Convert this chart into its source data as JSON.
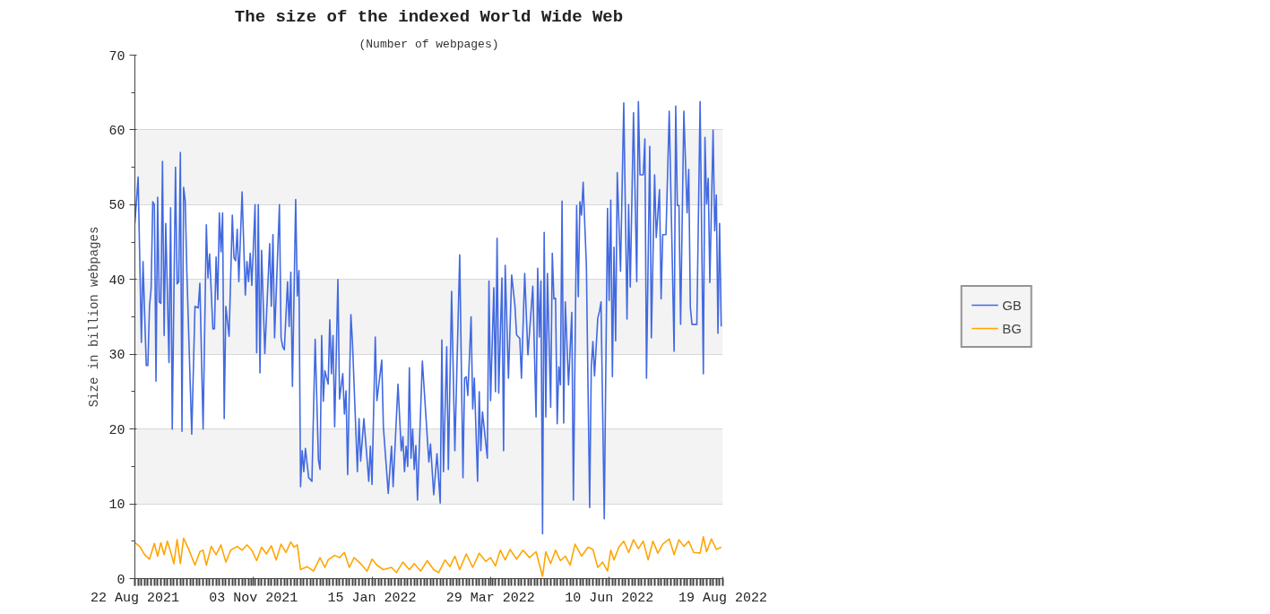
{
  "chart_data": {
    "type": "line",
    "title": "The size of the indexed World Wide Web",
    "subtitle": "(Number of webpages)",
    "ylabel": "Size in billion webpages",
    "xlim": [
      "2021-08-22",
      "2022-08-19"
    ],
    "xticks": [
      {
        "value": "2021-08-22",
        "label": "22 Aug 2021"
      },
      {
        "value": "2021-11-03",
        "label": "03 Nov 2021"
      },
      {
        "value": "2022-01-15",
        "label": "15 Jan 2022"
      },
      {
        "value": "2022-03-29",
        "label": "29 Mar 2022"
      },
      {
        "value": "2022-06-10",
        "label": "10 Jun 2022"
      },
      {
        "value": "2022-08-19",
        "label": "19 Aug 2022"
      }
    ],
    "ylim": [
      0,
      70
    ],
    "yticks": [
      0,
      10,
      20,
      30,
      40,
      50,
      60,
      70
    ],
    "grid": "y",
    "legend": "right",
    "line_style": "solid",
    "marker": "none",
    "series": [
      {
        "name": "GB",
        "color": "#4169e1",
        "x": [
          "2021-08-22",
          "2021-08-24",
          "2021-08-26",
          "2021-08-27",
          "2021-08-29",
          "2021-08-30",
          "2021-08-31",
          "2021-09-01",
          "2021-09-02",
          "2021-09-03",
          "2021-09-04",
          "2021-09-05",
          "2021-09-06",
          "2021-09-07",
          "2021-09-08",
          "2021-09-09",
          "2021-09-10",
          "2021-09-12",
          "2021-09-13",
          "2021-09-14",
          "2021-09-16",
          "2021-09-17",
          "2021-09-18",
          "2021-09-19",
          "2021-09-20",
          "2021-09-21",
          "2021-09-22",
          "2021-09-23",
          "2021-09-26",
          "2021-09-28",
          "2021-09-30",
          "2021-10-01",
          "2021-10-03",
          "2021-10-05",
          "2021-10-06",
          "2021-10-07",
          "2021-10-09",
          "2021-10-10",
          "2021-10-11",
          "2021-10-12",
          "2021-10-13",
          "2021-10-14",
          "2021-10-15",
          "2021-10-16",
          "2021-10-17",
          "2021-10-19",
          "2021-10-21",
          "2021-10-22",
          "2021-10-23",
          "2021-10-24",
          "2021-10-25",
          "2021-10-27",
          "2021-10-29",
          "2021-10-30",
          "2021-10-31",
          "2021-11-01",
          "2021-11-02",
          "2021-11-04",
          "2021-11-05",
          "2021-11-06",
          "2021-11-07",
          "2021-11-08",
          "2021-11-10",
          "2021-11-13",
          "2021-11-14",
          "2021-11-15",
          "2021-11-16",
          "2021-11-19",
          "2021-11-20",
          "2021-11-21",
          "2021-11-22",
          "2021-11-24",
          "2021-11-25",
          "2021-11-26",
          "2021-11-27",
          "2021-11-29",
          "2021-11-30",
          "2021-12-01",
          "2021-12-02",
          "2021-12-03",
          "2021-12-04",
          "2021-12-05",
          "2021-12-07",
          "2021-12-09",
          "2021-12-11",
          "2021-12-13",
          "2021-12-14",
          "2021-12-15",
          "2021-12-16",
          "2021-12-17",
          "2021-12-19",
          "2021-12-20",
          "2021-12-21",
          "2021-12-22",
          "2021-12-23",
          "2021-12-25",
          "2021-12-26",
          "2021-12-28",
          "2021-12-29",
          "2021-12-30",
          "2021-12-31",
          "2022-01-02",
          "2022-01-03",
          "2022-01-06",
          "2022-01-07",
          "2022-01-08",
          "2022-01-10",
          "2022-01-13",
          "2022-01-14",
          "2022-01-15",
          "2022-01-17",
          "2022-01-18",
          "2022-01-21",
          "2022-01-22",
          "2022-01-25",
          "2022-01-27",
          "2022-01-28",
          "2022-01-31",
          "2022-02-02",
          "2022-02-03",
          "2022-02-04",
          "2022-02-05",
          "2022-02-06",
          "2022-02-07",
          "2022-02-08",
          "2022-02-09",
          "2022-02-10",
          "2022-02-11",
          "2022-02-12",
          "2022-02-15",
          "2022-02-19",
          "2022-02-20",
          "2022-02-22",
          "2022-02-24",
          "2022-02-26",
          "2022-02-27",
          "2022-02-28",
          "2022-03-02",
          "2022-03-03",
          "2022-03-05",
          "2022-03-07",
          "2022-03-10",
          "2022-03-12",
          "2022-03-13",
          "2022-03-14",
          "2022-03-15",
          "2022-03-17",
          "2022-03-18",
          "2022-03-19",
          "2022-03-21",
          "2022-03-22",
          "2022-03-23",
          "2022-03-24",
          "2022-03-27",
          "2022-03-28",
          "2022-03-29",
          "2022-03-31",
          "2022-04-01",
          "2022-04-02",
          "2022-04-03",
          "2022-04-05",
          "2022-04-06",
          "2022-04-07",
          "2022-04-09",
          "2022-04-11",
          "2022-04-13",
          "2022-04-14",
          "2022-04-16",
          "2022-04-17",
          "2022-04-19",
          "2022-04-21",
          "2022-04-24",
          "2022-04-26",
          "2022-04-27",
          "2022-04-28",
          "2022-04-29",
          "2022-04-30",
          "2022-05-01",
          "2022-05-02",
          "2022-05-03",
          "2022-05-05",
          "2022-05-06",
          "2022-05-07",
          "2022-05-08",
          "2022-05-09",
          "2022-05-10",
          "2022-05-11",
          "2022-05-12",
          "2022-05-13",
          "2022-05-14",
          "2022-05-16",
          "2022-05-18",
          "2022-05-19",
          "2022-05-21",
          "2022-05-22",
          "2022-05-23",
          "2022-05-24",
          "2022-05-25",
          "2022-05-27",
          "2022-05-29",
          "2022-05-30",
          "2022-05-31",
          "2022-06-01",
          "2022-06-03",
          "2022-06-04",
          "2022-06-05",
          "2022-06-07",
          "2022-06-09",
          "2022-06-10",
          "2022-06-11",
          "2022-06-12",
          "2022-06-13",
          "2022-06-14",
          "2022-06-15",
          "2022-06-17",
          "2022-06-19",
          "2022-06-21",
          "2022-06-22",
          "2022-06-23",
          "2022-06-25",
          "2022-06-27",
          "2022-06-28",
          "2022-06-29",
          "2022-07-01",
          "2022-07-02",
          "2022-07-03",
          "2022-07-05",
          "2022-07-06",
          "2022-07-08",
          "2022-07-09",
          "2022-07-11",
          "2022-07-12",
          "2022-07-13",
          "2022-07-15",
          "2022-07-17",
          "2022-07-20",
          "2022-07-21",
          "2022-07-22",
          "2022-07-23",
          "2022-07-24",
          "2022-07-26",
          "2022-07-28",
          "2022-07-29",
          "2022-07-30",
          "2022-07-31",
          "2022-08-03",
          "2022-08-05",
          "2022-08-07",
          "2022-08-08",
          "2022-08-09",
          "2022-08-10",
          "2022-08-11",
          "2022-08-13",
          "2022-08-14",
          "2022-08-15",
          "2022-08-16",
          "2022-08-17",
          "2022-08-18"
        ],
        "values": [
          47.5,
          53.7,
          31.6,
          42.4,
          28.5,
          28.5,
          36.4,
          38.8,
          50.4,
          50,
          26.4,
          51,
          37,
          36.8,
          55.8,
          32.5,
          47.5,
          28.9,
          49.6,
          20,
          55,
          39.4,
          39.7,
          57,
          19.7,
          52.3,
          50.5,
          41,
          19.3,
          36.4,
          36.2,
          39.5,
          20,
          47.3,
          40.2,
          43.4,
          33.4,
          33.4,
          43,
          37.3,
          48.9,
          43.7,
          48.9,
          21.4,
          36.4,
          32.4,
          48.6,
          42.9,
          42.5,
          46.7,
          39.7,
          51.7,
          37.9,
          42.4,
          39.7,
          43.5,
          39.2,
          50,
          30.2,
          50,
          27.5,
          43.9,
          30.1,
          44.8,
          36.4,
          46,
          32.2,
          50,
          32.2,
          31,
          30.6,
          39.7,
          33.7,
          41,
          25.7,
          50.7,
          37.8,
          41.2,
          12.3,
          17.1,
          14.3,
          17.4,
          13.5,
          13,
          32,
          15.9,
          14.6,
          32.5,
          23.7,
          27.8,
          26,
          34.6,
          27.4,
          32.5,
          20.3,
          40,
          24,
          27.4,
          22,
          25.1,
          13.9,
          35.3,
          31.4,
          14.3,
          21.4,
          15.7,
          21.4,
          13,
          17.7,
          12.6,
          32.3,
          23.8,
          29.2,
          20.3,
          11.4,
          17.7,
          12.3,
          26,
          17.1,
          19,
          14.3,
          17.7,
          15,
          28.2,
          16.1,
          20,
          14.6,
          17.8,
          10.5,
          29.1,
          15.6,
          18,
          11.2,
          16.7,
          10.1,
          31.9,
          14.3,
          31,
          14.6,
          38.4,
          17.1,
          43.3,
          13.5,
          26.8,
          27,
          24.5,
          35,
          22.7,
          26.8,
          13,
          25,
          17.1,
          22.3,
          16.1,
          39.8,
          23.8,
          38.9,
          25,
          45.5,
          24.8,
          40.2,
          17.1,
          41.9,
          26.8,
          40.6,
          36.5,
          32.6,
          32.1,
          26.8,
          40.8,
          29.9,
          39.1,
          21.6,
          41.5,
          32.3,
          39.8,
          6,
          46.3,
          21.6,
          40.8,
          22.9,
          43.5,
          37.4,
          37.5,
          20.7,
          28.3,
          25.9,
          50.5,
          20.8,
          37,
          25.9,
          35.6,
          10.5,
          49.9,
          37.7,
          50.4,
          48.6,
          53,
          41.8,
          9.5,
          28.3,
          31.7,
          27.1,
          34.8,
          35.7,
          37,
          8,
          49.5,
          37.2,
          50.6,
          27,
          44.3,
          31.8,
          54.3,
          41.1,
          63.6,
          34.7,
          50,
          39,
          62.3,
          39.7,
          63.8,
          54,
          54,
          58.8,
          26.8,
          57.8,
          32.2,
          54,
          45.6,
          52,
          37.4,
          46,
          46,
          62.5,
          30.4,
          63.2,
          49.9,
          49.9,
          34,
          62.5,
          48.9,
          54.7,
          36.3,
          34,
          34,
          63.8,
          27.4,
          59,
          50.1,
          53.5,
          39.6,
          60,
          46.5,
          51.3,
          32.8,
          47.5,
          33.7
        ]
      },
      {
        "name": "BG",
        "color": "#ffa500",
        "x": [
          "2021-08-22",
          "2021-08-25",
          "2021-08-28",
          "2021-08-31",
          "2021-09-03",
          "2021-09-05",
          "2021-09-07",
          "2021-09-09",
          "2021-09-11",
          "2021-09-13",
          "2021-09-15",
          "2021-09-17",
          "2021-09-19",
          "2021-09-21",
          "2021-09-24",
          "2021-09-28",
          "2021-10-01",
          "2021-10-03",
          "2021-10-05",
          "2021-10-08",
          "2021-10-11",
          "2021-10-14",
          "2021-10-17",
          "2021-10-20",
          "2021-10-24",
          "2021-10-27",
          "2021-10-30",
          "2021-11-02",
          "2021-11-05",
          "2021-11-08",
          "2021-11-11",
          "2021-11-14",
          "2021-11-17",
          "2021-11-20",
          "2021-11-23",
          "2021-11-26",
          "2021-11-28",
          "2021-11-30",
          "2021-12-02",
          "2021-12-06",
          "2021-12-10",
          "2021-12-14",
          "2021-12-17",
          "2021-12-19",
          "2021-12-23",
          "2021-12-26",
          "2021-12-29",
          "2022-01-01",
          "2022-01-04",
          "2022-01-08",
          "2022-01-12",
          "2022-01-15",
          "2022-01-18",
          "2022-01-22",
          "2022-01-27",
          "2022-01-30",
          "2022-02-03",
          "2022-02-07",
          "2022-02-10",
          "2022-02-14",
          "2022-02-18",
          "2022-02-22",
          "2022-02-25",
          "2022-03-01",
          "2022-03-04",
          "2022-03-07",
          "2022-03-10",
          "2022-03-14",
          "2022-03-18",
          "2022-03-22",
          "2022-03-26",
          "2022-03-29",
          "2022-04-01",
          "2022-04-04",
          "2022-04-07",
          "2022-04-10",
          "2022-04-14",
          "2022-04-18",
          "2022-04-22",
          "2022-04-26",
          "2022-04-30",
          "2022-05-02",
          "2022-05-05",
          "2022-05-08",
          "2022-05-11",
          "2022-05-14",
          "2022-05-17",
          "2022-05-20",
          "2022-05-24",
          "2022-05-28",
          "2022-05-31",
          "2022-06-03",
          "2022-06-06",
          "2022-06-09",
          "2022-06-11",
          "2022-06-13",
          "2022-06-16",
          "2022-06-19",
          "2022-06-22",
          "2022-06-25",
          "2022-06-28",
          "2022-07-01",
          "2022-07-04",
          "2022-07-07",
          "2022-07-10",
          "2022-07-13",
          "2022-07-17",
          "2022-07-20",
          "2022-07-23",
          "2022-07-26",
          "2022-07-29",
          "2022-08-01",
          "2022-08-05",
          "2022-08-07",
          "2022-08-09",
          "2022-08-12",
          "2022-08-15",
          "2022-08-18"
        ],
        "values": [
          4.8,
          4.3,
          3.2,
          2.6,
          4.7,
          3,
          4.8,
          3.2,
          5,
          3.6,
          2,
          5.2,
          2,
          5.4,
          4,
          1.8,
          3.6,
          3.8,
          1.8,
          4.3,
          3.2,
          4.5,
          2.2,
          3.8,
          4.3,
          3.8,
          4.5,
          3.8,
          2.4,
          4.2,
          3.3,
          4.4,
          2.5,
          4.6,
          3.5,
          4.9,
          4.2,
          4.5,
          1.2,
          1.6,
          1,
          2.8,
          1.5,
          2.5,
          3.1,
          2.8,
          3.5,
          1.5,
          2.8,
          2,
          1,
          2.6,
          1.8,
          1.2,
          1.5,
          0.8,
          2.2,
          1.2,
          2,
          1,
          2.4,
          1.2,
          0.8,
          2.5,
          1.6,
          3,
          1.2,
          3.3,
          1.5,
          3.4,
          2.3,
          2.8,
          1.7,
          3.8,
          2.5,
          3.9,
          2.6,
          3.8,
          2.8,
          3.6,
          0.3,
          3.6,
          2,
          3.8,
          2.4,
          3,
          1.8,
          4.6,
          3,
          4.2,
          3.9,
          1.5,
          2.2,
          1,
          3.8,
          2.5,
          4.2,
          5,
          3.5,
          5.2,
          4,
          5,
          2.5,
          5,
          3.4,
          4.6,
          5.3,
          3.2,
          5.2,
          4.3,
          5,
          3.5,
          3.4,
          5.6,
          3.6,
          5.3,
          3.9,
          4.2
        ]
      }
    ]
  }
}
